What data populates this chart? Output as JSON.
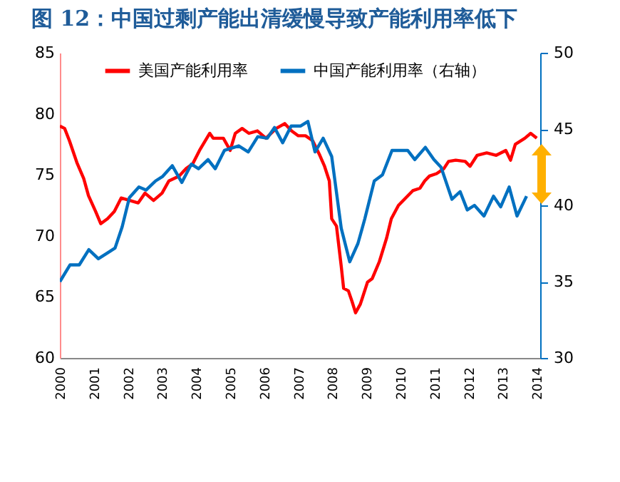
{
  "chart_data": {
    "type": "line",
    "title": "图 12：中国过剩产能出清缓慢导致产能利用率低下",
    "xlim": [
      2000,
      2014.1
    ],
    "xticks": [
      2000,
      2001,
      2002,
      2003,
      2004,
      2005,
      2006,
      2007,
      2008,
      2009,
      2010,
      2011,
      2012,
      2013,
      2014
    ],
    "ylim": [
      60,
      85
    ],
    "yticks": [
      60,
      65,
      70,
      75,
      80,
      85
    ],
    "y2lim": [
      30,
      50
    ],
    "y2ticks": [
      30,
      35,
      40,
      45,
      50
    ],
    "legend": "top",
    "grid": false,
    "line_style": "solid",
    "marker": "none",
    "series": [
      {
        "name": "美国产能利用率",
        "color": "#ff0000",
        "x": [
          2000,
          2000.14,
          2000.28,
          2000.5,
          2000.7,
          2000.84,
          2001.05,
          2001.2,
          2001.4,
          2001.6,
          2001.8,
          2002.05,
          2002.3,
          2002.5,
          2002.75,
          2003,
          2003.2,
          2003.5,
          2003.7,
          2003.9,
          2004.1,
          2004.4,
          2004.5,
          2004.8,
          2005,
          2005.15,
          2005.35,
          2005.55,
          2005.8,
          2006.05,
          2006.35,
          2006.6,
          2006.8,
          2007,
          2007.21,
          2007.42,
          2007.63,
          2007.77,
          2007.91,
          2007.98,
          2008.12,
          2008.26,
          2008.33,
          2008.47,
          2008.58,
          2008.68,
          2008.82,
          2009.03,
          2009.17,
          2009.38,
          2009.59,
          2009.73,
          2009.94,
          2010.15,
          2010.36,
          2010.57,
          2010.71,
          2010.85,
          2011.06,
          2011.27,
          2011.41,
          2011.62,
          2011.9,
          2012.04,
          2012.25,
          2012.53,
          2012.81,
          2013.09,
          2013.23,
          2013.37,
          2013.65,
          2013.82,
          2014
        ],
        "values": [
          79.0,
          78.8,
          77.8,
          76.0,
          74.7,
          73.3,
          72.0,
          71.0,
          71.4,
          72.0,
          73.1,
          72.9,
          72.7,
          73.5,
          72.9,
          73.5,
          74.5,
          74.9,
          75.5,
          75.9,
          77.0,
          78.4,
          78.0,
          78.0,
          77.0,
          78.4,
          78.8,
          78.4,
          78.6,
          78.0,
          78.8,
          79.2,
          78.6,
          78.2,
          78.2,
          77.8,
          76.6,
          75.7,
          74.5,
          71.4,
          70.8,
          67.5,
          65.7,
          65.5,
          64.6,
          63.7,
          64.4,
          66.2,
          66.5,
          67.9,
          69.8,
          71.4,
          72.5,
          73.1,
          73.7,
          73.9,
          74.5,
          74.9,
          75.1,
          75.5,
          76.1,
          76.2,
          76.1,
          75.7,
          76.6,
          76.8,
          76.6,
          77.0,
          76.2,
          77.5,
          78.0,
          78.4,
          78.0
        ]
      },
      {
        "name": "中国产能利用率（右轴）",
        "color": "#0070c0",
        "axis": "y2",
        "x": [
          2000,
          2000.3,
          2000.57,
          2000.85,
          2001.13,
          2001.41,
          2001.62,
          2001.83,
          2002.04,
          2002.32,
          2002.53,
          2002.81,
          2003.02,
          2003.3,
          2003.58,
          2003.86,
          2004.07,
          2004.35,
          2004.56,
          2004.83,
          2005.25,
          2005.53,
          2005.81,
          2006.09,
          2006.3,
          2006.54,
          2006.79,
          2007.07,
          2007.28,
          2007.49,
          2007.73,
          2007.98,
          2008.26,
          2008.51,
          2008.75,
          2008.95,
          2009.23,
          2009.47,
          2009.75,
          2010.21,
          2010.42,
          2010.73,
          2010.98,
          2011.19,
          2011.51,
          2011.75,
          2011.96,
          2012.17,
          2012.45,
          2012.73,
          2012.94,
          2013.19,
          2013.42,
          2013.7
        ],
        "values": [
          35.0,
          36.1,
          36.1,
          37.1,
          36.5,
          36.9,
          37.2,
          38.6,
          40.5,
          41.2,
          41.0,
          41.6,
          41.9,
          42.6,
          41.5,
          42.7,
          42.4,
          43.0,
          42.4,
          43.6,
          43.9,
          43.5,
          44.5,
          44.4,
          45.1,
          44.1,
          45.2,
          45.2,
          45.5,
          43.5,
          44.4,
          43.2,
          38.5,
          36.3,
          37.5,
          39.1,
          41.6,
          42.0,
          43.6,
          43.6,
          43.0,
          43.8,
          43.0,
          42.5,
          40.4,
          40.9,
          39.7,
          40.0,
          39.3,
          40.6,
          39.9,
          41.2,
          39.3,
          40.6
        ]
      }
    ]
  }
}
